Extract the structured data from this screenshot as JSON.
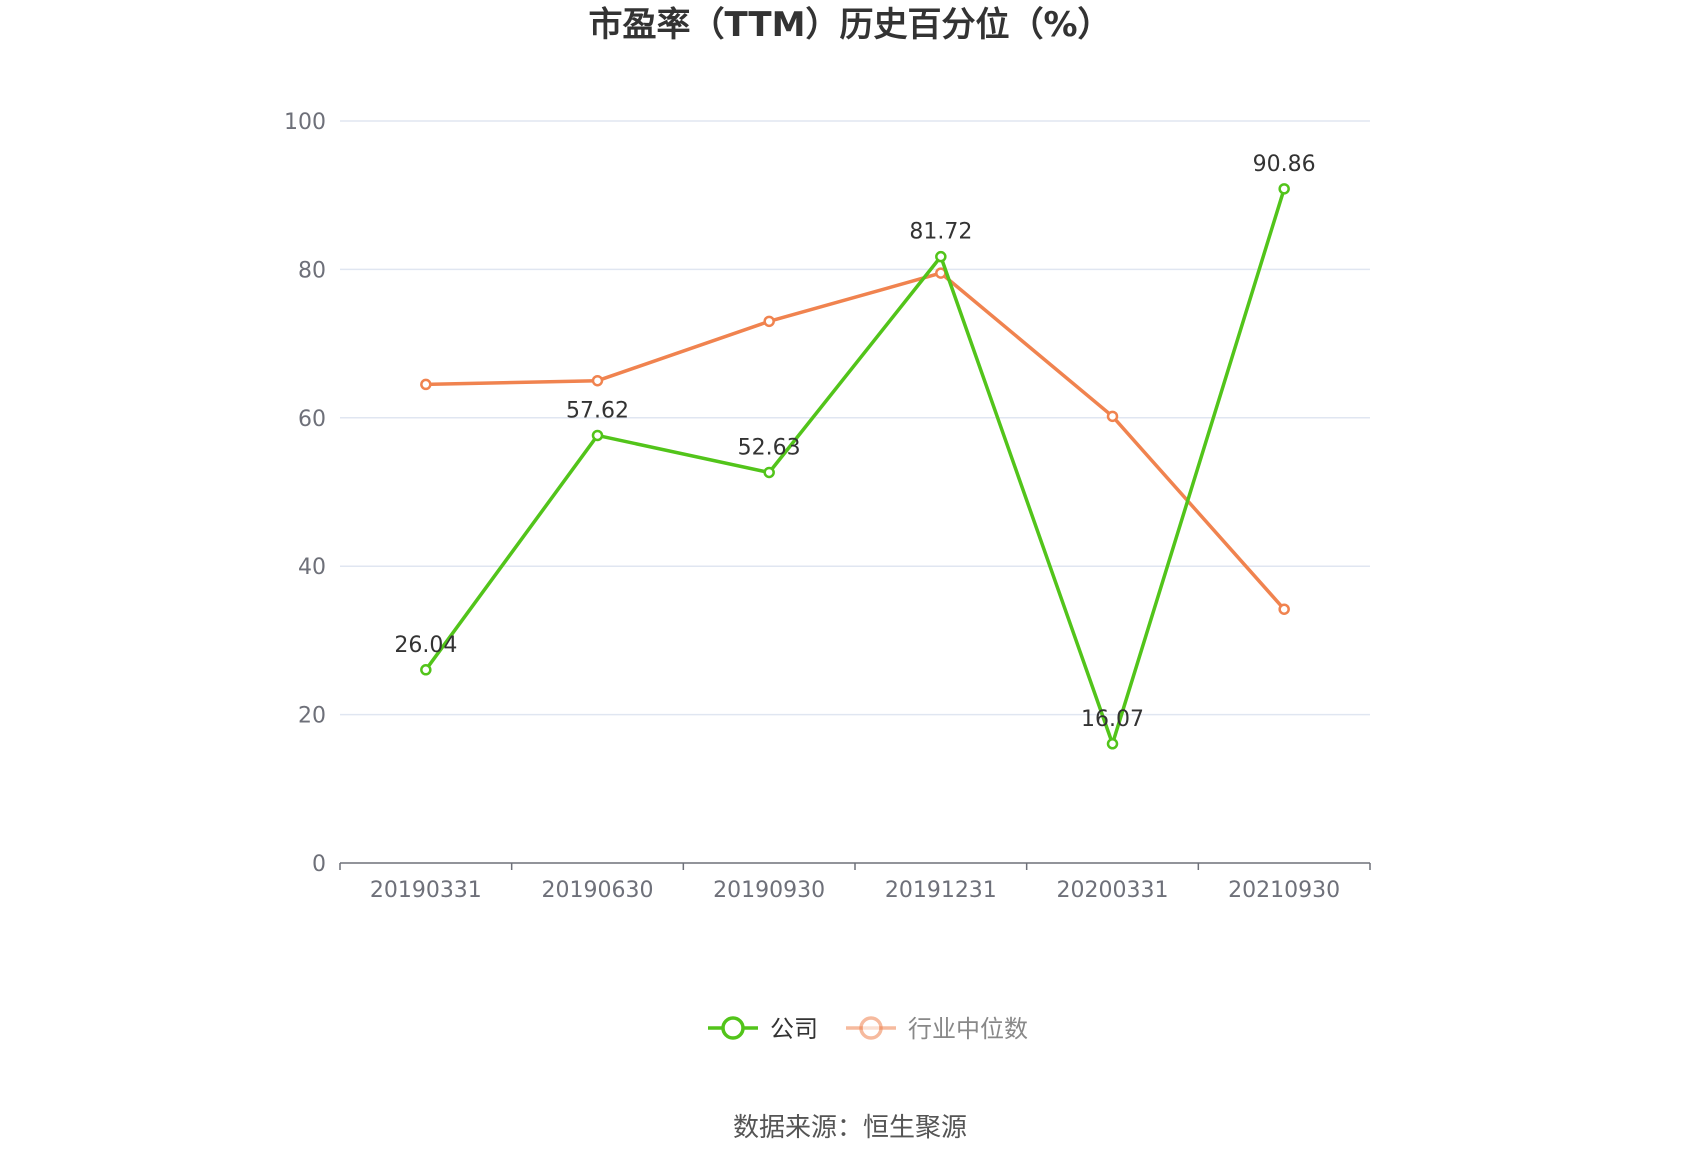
{
  "chart_data": {
    "type": "line",
    "title": "市盈率（TTM）历史百分位（%）",
    "categories": [
      "20190331",
      "20190630",
      "20190930",
      "20191231",
      "20200331",
      "20210930"
    ],
    "ylim": [
      0,
      100
    ],
    "yticks": [
      0,
      20,
      40,
      60,
      80,
      100
    ],
    "grid": true,
    "legend_position": "bottom-center",
    "series": [
      {
        "name": "公司",
        "color": "#52c41a",
        "values": [
          26.04,
          57.62,
          52.63,
          81.72,
          16.07,
          90.86
        ],
        "show_labels": true
      },
      {
        "name": "行业中位数",
        "color": "#f0834f",
        "values": [
          64.5,
          65.0,
          73.0,
          79.5,
          60.2,
          34.2
        ],
        "show_labels": false
      }
    ]
  },
  "source": "数据来源：恒生聚源"
}
